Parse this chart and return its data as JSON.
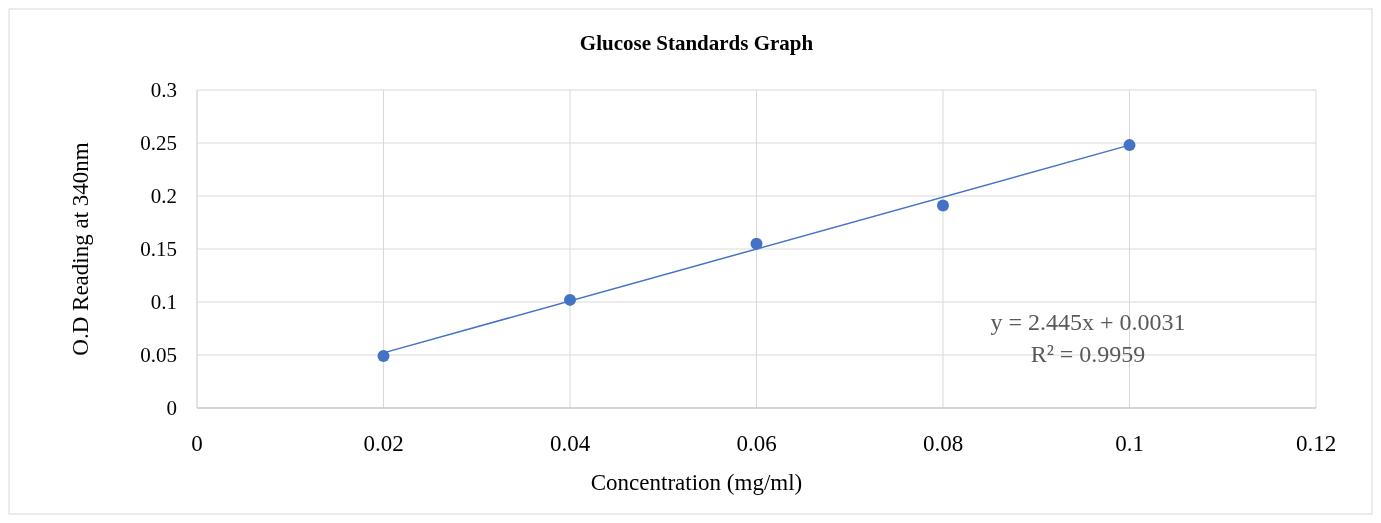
{
  "chart_data": {
    "type": "scatter",
    "title": "Glucose Standards Graph",
    "xlabel": "Concentration (mg/ml)",
    "ylabel": "O.D Reading at 340nm",
    "x": [
      0.02,
      0.04,
      0.06,
      0.08,
      0.1
    ],
    "series": [
      {
        "color": "#4472c4",
        "marker": "circle",
        "values": [
          0.049,
          0.102,
          0.155,
          0.191,
          0.248
        ]
      },
      {
        "type": "line",
        "color": "#4472c4",
        "marker": "none",
        "x": [
          0.02,
          0.1
        ],
        "values": [
          0.052,
          0.248
        ]
      }
    ],
    "xlim": [
      0,
      0.12
    ],
    "xticks": [
      0,
      0.02,
      0.04,
      0.06,
      0.08,
      0.1,
      0.12
    ],
    "ylim": [
      0,
      0.3
    ],
    "yticks": [
      0,
      0.05,
      0.1,
      0.15,
      0.2,
      0.25,
      0.3
    ],
    "grid": true,
    "annotations": [
      "y = 2.445x + 0.0031",
      "R² = 0.9959"
    ]
  }
}
